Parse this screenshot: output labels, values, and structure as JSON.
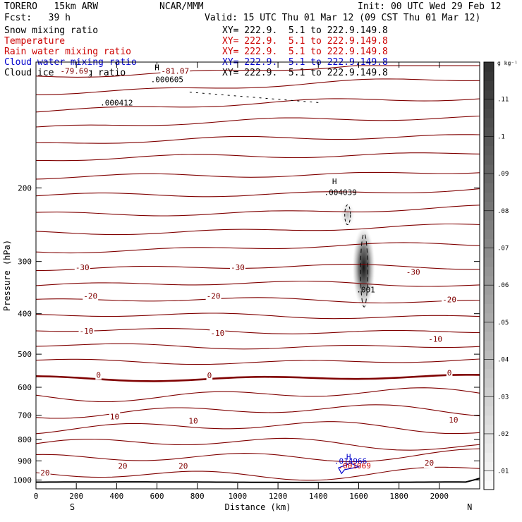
{
  "header": {
    "model": "TORERO   15km ARW",
    "org": "NCAR/MMM",
    "init": "Init: 00 UTC Wed 29 Feb 12",
    "fcst": "Fcst:   39 h",
    "valid": "Valid: 15 UTC Thu 01 Mar 12 (09 CST Thu 01 Mar 12)"
  },
  "fields": [
    {
      "name": "Snow mixing ratio",
      "xy": "XY= 222.9.  5.1 to 222.9.149.8",
      "name_color": "#000000",
      "xy_color": "#000000"
    },
    {
      "name": "Temperature",
      "xy": "XY= 222.9.  5.1 to 222.9.149.8",
      "name_color": "#cc0000",
      "xy_color": "#cc0000"
    },
    {
      "name": "Rain water mixing ratio",
      "xy": "XY= 222.9.  5.1 to 222.9.149.8",
      "name_color": "#cc0000",
      "xy_color": "#cc0000"
    },
    {
      "name": "Cloud water mixing ratio",
      "xy": "XY= 222.9.  5.1 to 222.9.149.8",
      "name_color": "#0000cc",
      "xy_color": "#0000cc"
    },
    {
      "name": "Cloud ice mixing ratio",
      "xy": "XY= 222.9.  5.1 to 222.9.149.8",
      "name_color": "#000000",
      "xy_color": "#000000"
    }
  ],
  "chart_data": {
    "type": "contour cross-section",
    "xlabel": "Distance (km)",
    "ylabel": "Pressure (hPa)",
    "x_ticks": [
      "0",
      "200",
      "400",
      "600",
      "800",
      "1000",
      "1200",
      "1400",
      "1600",
      "1800",
      "2000"
    ],
    "y_ticks": [
      "200",
      "300",
      "400",
      "500",
      "600",
      "700",
      "800",
      "900",
      "1000"
    ],
    "xlim": [
      0,
      2200
    ],
    "ylim": [
      1050,
      100
    ],
    "y_scale": "log",
    "left_end_label": "S",
    "right_end_label": "N",
    "colorbar": {
      "unit": "g kg⁻¹",
      "ticks": [
        ".01",
        ".02",
        ".03",
        ".04",
        ".05",
        ".06",
        ".07",
        ".08",
        ".09",
        ".1",
        ".11"
      ],
      "range": [
        0.005,
        0.12
      ]
    },
    "temperature_labels": [
      {
        "text": "-79.69",
        "x": 190,
        "p": 105
      },
      {
        "text": "-81.07",
        "x": 690,
        "p": 105
      },
      {
        "text": "-30",
        "x": 230,
        "p": 310
      },
      {
        "text": "-30",
        "x": 1000,
        "p": 310
      },
      {
        "text": "-30",
        "x": 1870,
        "p": 318
      },
      {
        "text": "-20",
        "x": 270,
        "p": 363
      },
      {
        "text": "-20",
        "x": 880,
        "p": 363
      },
      {
        "text": "-20",
        "x": 2050,
        "p": 370
      },
      {
        "text": "-10",
        "x": 250,
        "p": 440
      },
      {
        "text": "-10",
        "x": 900,
        "p": 445
      },
      {
        "text": "-10",
        "x": 1980,
        "p": 460
      },
      {
        "text": "0",
        "x": 310,
        "p": 560
      },
      {
        "text": "0",
        "x": 860,
        "p": 562
      },
      {
        "text": "0",
        "x": 2050,
        "p": 554
      },
      {
        "text": "10",
        "x": 390,
        "p": 705
      },
      {
        "text": "10",
        "x": 780,
        "p": 722
      },
      {
        "text": "10",
        "x": 2070,
        "p": 717
      },
      {
        "text": "20",
        "x": 430,
        "p": 925
      },
      {
        "text": "20",
        "x": 730,
        "p": 925
      },
      {
        "text": "20",
        "x": 1950,
        "p": 910
      },
      {
        "text": "20",
        "x": 45,
        "p": 960
      }
    ],
    "field_annotations": [
      {
        "text": "H",
        "x": 600,
        "p": 103,
        "color": "#000000"
      },
      {
        "text": ".000605",
        "x": 650,
        "p": 110,
        "color": "#000000"
      },
      {
        "text": ".000412",
        "x": 400,
        "p": 125,
        "color": "#000000"
      },
      {
        "text": "H",
        "x": 1480,
        "p": 193,
        "color": "#000000"
      },
      {
        "text": ".004039",
        "x": 1510,
        "p": 205,
        "color": "#000000"
      },
      {
        "text": ".001",
        "x": 1635,
        "p": 350,
        "color": "#000000"
      },
      {
        "text": "H",
        "x": 1550,
        "p": 880,
        "color": "#0000cc"
      },
      {
        "text": ".014966",
        "x": 1560,
        "p": 901,
        "color": "#0000cc"
      },
      {
        "text": ".001069",
        "x": 1580,
        "p": 923,
        "color": "#cc0000"
      }
    ]
  }
}
